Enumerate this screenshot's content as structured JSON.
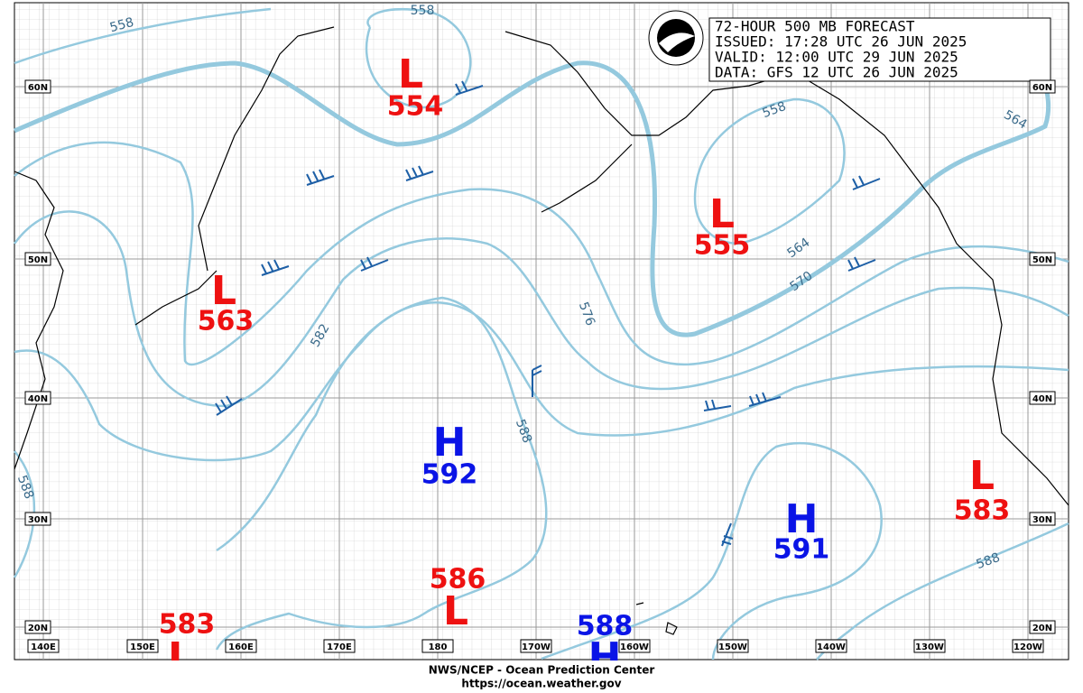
{
  "header": {
    "lines": [
      "72-HOUR 500 MB FORECAST",
      "ISSUED: 17:28 UTC 26 JUN 2025",
      "VALID:  12:00 UTC 29 JUN 2025",
      "DATA:  GFS 12 UTC 26 JUN 2025"
    ]
  },
  "centers": [
    {
      "letter": "L",
      "value": "554"
    },
    {
      "letter": "L",
      "value": "555"
    },
    {
      "letter": "L",
      "value": "563"
    },
    {
      "letter": "H",
      "value": "592"
    },
    {
      "letter": "H",
      "value": "591"
    },
    {
      "letter": "L",
      "value": "583"
    },
    {
      "letter": "L",
      "value": "586"
    },
    {
      "letter": "L",
      "value": "583"
    },
    {
      "letter": "H",
      "value": "588"
    }
  ],
  "contour_labels": [
    "558",
    "558",
    "558",
    "564",
    "564",
    "570",
    "576",
    "582",
    "588",
    "588",
    "588"
  ],
  "latitude_labels": [
    "60N",
    "50N",
    "40N",
    "30N",
    "20N"
  ],
  "longitude_labels": [
    "140E",
    "150E",
    "160E",
    "170E",
    "180",
    "170W",
    "160W",
    "150W",
    "140W",
    "130W",
    "120W"
  ],
  "footer": {
    "lines": [
      "NWS/NCEP - Ocean Prediction Center",
      "https://ocean.weather.gov"
    ]
  }
}
